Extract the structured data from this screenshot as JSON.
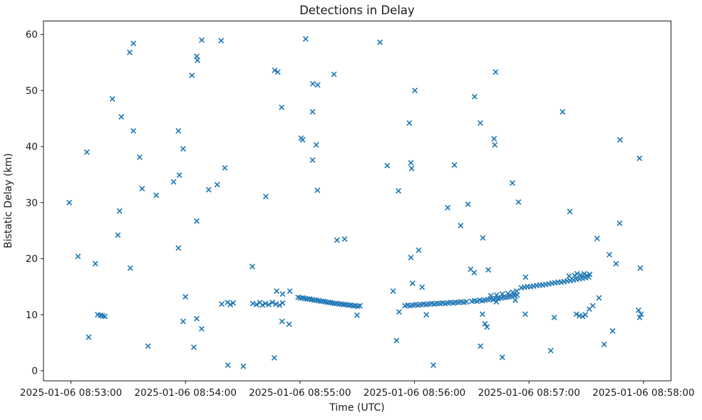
{
  "figure": {
    "title": "Detections in Delay",
    "xlabel": "Time (UTC)",
    "ylabel": "Bistatic Delay (km)"
  },
  "chart_data": {
    "type": "scatter",
    "title": "Detections in Delay",
    "xlabel": "Time (UTC)",
    "ylabel": "Bistatic Delay (km)",
    "marker": "x",
    "marker_color": "#1f77b4",
    "axis_color": "#1a1a1a",
    "grid": false,
    "legend": false,
    "x_base_time": "2025-01-06 08:53:00",
    "x_tick_labels": [
      "2025-01-06 08:53:00",
      "2025-01-06 08:54:00",
      "2025-01-06 08:55:00",
      "2025-01-06 08:56:00",
      "2025-01-06 08:57:00",
      "2025-01-06 08:58:00"
    ],
    "x_tick_seconds": [
      0,
      60,
      120,
      180,
      240,
      300
    ],
    "y_ticks": [
      0,
      10,
      20,
      30,
      40,
      50,
      60
    ],
    "xlim_seconds": [
      -14.4,
      314.4
    ],
    "ylim": [
      -1.8,
      62.4
    ],
    "points_format": "[seconds_after_2025-01-06T08:53:00Z, bistatic_delay_km]",
    "points": [
      [
        -0.9,
        30.0
      ],
      [
        3.7,
        20.4
      ],
      [
        8.3,
        39.0
      ],
      [
        9.3,
        6.0
      ],
      [
        12.8,
        19.1
      ],
      [
        14.0,
        10.0
      ],
      [
        15.5,
        9.9
      ],
      [
        16.6,
        9.8
      ],
      [
        17.8,
        9.7
      ],
      [
        21.7,
        48.5
      ],
      [
        24.6,
        24.2
      ],
      [
        25.5,
        28.5
      ],
      [
        26.4,
        45.3
      ],
      [
        30.8,
        56.8
      ],
      [
        31.1,
        18.3
      ],
      [
        32.7,
        58.4
      ],
      [
        32.7,
        42.8
      ],
      [
        36.0,
        38.1
      ],
      [
        37.3,
        32.5
      ],
      [
        40.4,
        4.4
      ],
      [
        44.7,
        31.3
      ],
      [
        53.8,
        33.7
      ],
      [
        56.3,
        42.8
      ],
      [
        56.3,
        21.9
      ],
      [
        56.8,
        34.9
      ],
      [
        58.8,
        39.6
      ],
      [
        58.8,
        8.8
      ],
      [
        60.0,
        13.2
      ],
      [
        63.4,
        52.7
      ],
      [
        64.4,
        4.2
      ],
      [
        65.9,
        56.1
      ],
      [
        65.9,
        26.7
      ],
      [
        65.9,
        9.3
      ],
      [
        66.3,
        55.4
      ],
      [
        68.5,
        59.0
      ],
      [
        68.5,
        7.5
      ],
      [
        72.2,
        32.3
      ],
      [
        76.6,
        33.2
      ],
      [
        78.7,
        58.9
      ],
      [
        80.6,
        36.2
      ],
      [
        82.2,
        1.0
      ],
      [
        90.3,
        0.8
      ],
      [
        95.0,
        18.6
      ],
      [
        102.1,
        31.1
      ],
      [
        106.5,
        2.3
      ],
      [
        106.8,
        53.6
      ],
      [
        108.4,
        53.3
      ],
      [
        110.4,
        47.0
      ],
      [
        110.6,
        8.8
      ],
      [
        114.3,
        8.3
      ],
      [
        120.6,
        41.5
      ],
      [
        121.4,
        41.2
      ],
      [
        123.0,
        59.2
      ],
      [
        126.6,
        46.2
      ],
      [
        126.6,
        37.6
      ],
      [
        126.7,
        51.2
      ],
      [
        128.5,
        40.3
      ],
      [
        129.1,
        32.2
      ],
      [
        129.3,
        51.0
      ],
      [
        137.8,
        52.9
      ],
      [
        139.4,
        23.3
      ],
      [
        143.4,
        23.5
      ],
      [
        149.9,
        9.9
      ],
      [
        161.9,
        58.6
      ],
      [
        165.7,
        36.6
      ],
      [
        168.8,
        14.2
      ],
      [
        170.6,
        5.4
      ],
      [
        171.6,
        32.1
      ],
      [
        171.9,
        10.5
      ],
      [
        177.3,
        44.2
      ],
      [
        178.1,
        37.1
      ],
      [
        178.1,
        20.2
      ],
      [
        178.5,
        36.1
      ],
      [
        179.0,
        15.6
      ],
      [
        180.2,
        50.0
      ],
      [
        182.2,
        21.5
      ],
      [
        184.0,
        14.9
      ],
      [
        186.2,
        10.0
      ],
      [
        189.9,
        1.0
      ],
      [
        197.4,
        29.1
      ],
      [
        200.9,
        36.7
      ],
      [
        204.2,
        25.9
      ],
      [
        208.0,
        29.7
      ],
      [
        209.4,
        18.1
      ],
      [
        211.3,
        17.5
      ],
      [
        211.5,
        48.9
      ],
      [
        214.5,
        44.2
      ],
      [
        214.6,
        4.4
      ],
      [
        215.6,
        10.1
      ],
      [
        215.8,
        23.7
      ],
      [
        216.9,
        8.4
      ],
      [
        218.0,
        7.8
      ],
      [
        218.7,
        18.0
      ],
      [
        221.7,
        41.4
      ],
      [
        222.1,
        40.3
      ],
      [
        222.5,
        53.3
      ],
      [
        222.9,
        12.3
      ],
      [
        226.0,
        2.4
      ],
      [
        231.3,
        33.5
      ],
      [
        232.8,
        12.6
      ],
      [
        234.5,
        30.1
      ],
      [
        238.0,
        10.1
      ],
      [
        238.2,
        16.7
      ],
      [
        251.4,
        3.6
      ],
      [
        253.2,
        9.5
      ],
      [
        257.6,
        46.2
      ],
      [
        261.4,
        28.4
      ],
      [
        264.8,
        10.1
      ],
      [
        266.4,
        9.8
      ],
      [
        268.1,
        9.7
      ],
      [
        269.5,
        10.0
      ],
      [
        271.6,
        11.0
      ],
      [
        273.4,
        11.6
      ],
      [
        275.7,
        23.6
      ],
      [
        276.6,
        13.0
      ],
      [
        279.4,
        4.7
      ],
      [
        282.1,
        20.7
      ],
      [
        283.8,
        7.1
      ],
      [
        285.6,
        19.1
      ],
      [
        287.5,
        26.3
      ],
      [
        287.7,
        41.2
      ],
      [
        297.4,
        10.8
      ],
      [
        297.9,
        37.9
      ],
      [
        298.0,
        9.5
      ],
      [
        298.3,
        18.3
      ],
      [
        298.7,
        10.1
      ],
      [
        79.0,
        11.9
      ],
      [
        82.0,
        12.2
      ],
      [
        83.5,
        11.8
      ],
      [
        85.0,
        12.1
      ],
      [
        95.3,
        12.0
      ],
      [
        97.2,
        11.8
      ],
      [
        99.0,
        12.2
      ],
      [
        100.3,
        11.7
      ],
      [
        101.9,
        12.0
      ],
      [
        103.6,
        11.8
      ],
      [
        105.5,
        12.2
      ],
      [
        107.4,
        11.9
      ],
      [
        109.3,
        11.7
      ],
      [
        110.9,
        12.1
      ],
      [
        107.8,
        14.2
      ],
      [
        110.9,
        13.7
      ],
      [
        114.7,
        14.2
      ],
      [
        119.0,
        13.1
      ],
      [
        120.2,
        13.0
      ],
      [
        121.4,
        13.0
      ],
      [
        122.6,
        12.9
      ],
      [
        123.8,
        12.8
      ],
      [
        125.0,
        12.8
      ],
      [
        126.2,
        12.7
      ],
      [
        127.4,
        12.6
      ],
      [
        128.6,
        12.6
      ],
      [
        129.8,
        12.5
      ],
      [
        131.0,
        12.4
      ],
      [
        132.2,
        12.4
      ],
      [
        133.4,
        12.3
      ],
      [
        134.6,
        12.2
      ],
      [
        135.8,
        12.2
      ],
      [
        137.0,
        12.1
      ],
      [
        138.2,
        12.0
      ],
      [
        139.4,
        12.0
      ],
      [
        140.6,
        11.9
      ],
      [
        141.8,
        11.9
      ],
      [
        143.0,
        11.8
      ],
      [
        144.2,
        11.8
      ],
      [
        145.4,
        11.7
      ],
      [
        146.6,
        11.7
      ],
      [
        147.8,
        11.6
      ],
      [
        149.0,
        11.6
      ],
      [
        150.3,
        11.5
      ],
      [
        151.4,
        11.6
      ],
      [
        175.0,
        11.6
      ],
      [
        176.4,
        11.7
      ],
      [
        177.8,
        11.6
      ],
      [
        179.2,
        11.7
      ],
      [
        180.6,
        11.8
      ],
      [
        182.0,
        11.7
      ],
      [
        183.4,
        11.8
      ],
      [
        184.8,
        11.9
      ],
      [
        186.2,
        11.8
      ],
      [
        187.6,
        11.9
      ],
      [
        189.0,
        12.0
      ],
      [
        190.4,
        11.9
      ],
      [
        191.8,
        12.0
      ],
      [
        193.2,
        12.0
      ],
      [
        194.6,
        12.1
      ],
      [
        196.0,
        12.0
      ],
      [
        197.4,
        12.1
      ],
      [
        198.8,
        12.2
      ],
      [
        200.2,
        12.1
      ],
      [
        201.6,
        12.2
      ],
      [
        203.0,
        12.2
      ],
      [
        204.4,
        12.3
      ],
      [
        205.8,
        12.2
      ],
      [
        207.2,
        12.3
      ],
      [
        210.0,
        12.4
      ],
      [
        211.4,
        12.5
      ],
      [
        212.8,
        12.4
      ],
      [
        214.2,
        12.6
      ],
      [
        215.6,
        12.5
      ],
      [
        217.0,
        12.6
      ],
      [
        218.4,
        12.7
      ],
      [
        219.8,
        12.8
      ],
      [
        221.2,
        12.7
      ],
      [
        222.6,
        12.9
      ],
      [
        224.0,
        12.9
      ],
      [
        225.4,
        13.0
      ],
      [
        226.8,
        13.1
      ],
      [
        228.2,
        13.1
      ],
      [
        229.6,
        13.2
      ],
      [
        231.0,
        13.3
      ],
      [
        232.4,
        13.4
      ],
      [
        233.8,
        13.5
      ],
      [
        220.0,
        13.4
      ],
      [
        223.0,
        13.5
      ],
      [
        226.0,
        13.7
      ],
      [
        229.0,
        13.8
      ],
      [
        231.5,
        14.0
      ],
      [
        233.5,
        14.2
      ],
      [
        236.0,
        14.8
      ],
      [
        237.6,
        14.9
      ],
      [
        239.2,
        15.0
      ],
      [
        240.8,
        15.0
      ],
      [
        242.4,
        15.1
      ],
      [
        244.0,
        15.2
      ],
      [
        245.6,
        15.3
      ],
      [
        247.2,
        15.3
      ],
      [
        248.8,
        15.4
      ],
      [
        250.4,
        15.5
      ],
      [
        252.0,
        15.6
      ],
      [
        253.6,
        15.7
      ],
      [
        255.2,
        15.8
      ],
      [
        256.8,
        15.8
      ],
      [
        258.4,
        15.9
      ],
      [
        260.0,
        16.0
      ],
      [
        261.6,
        16.1
      ],
      [
        263.2,
        16.2
      ],
      [
        264.8,
        16.3
      ],
      [
        266.4,
        16.4
      ],
      [
        268.0,
        16.5
      ],
      [
        269.6,
        16.6
      ],
      [
        271.2,
        16.7
      ],
      [
        261.0,
        16.9
      ],
      [
        264.0,
        17.0
      ],
      [
        265.2,
        17.3
      ],
      [
        267.0,
        17.1
      ],
      [
        268.9,
        17.3
      ],
      [
        270.3,
        17.0
      ],
      [
        271.8,
        17.2
      ]
    ]
  }
}
